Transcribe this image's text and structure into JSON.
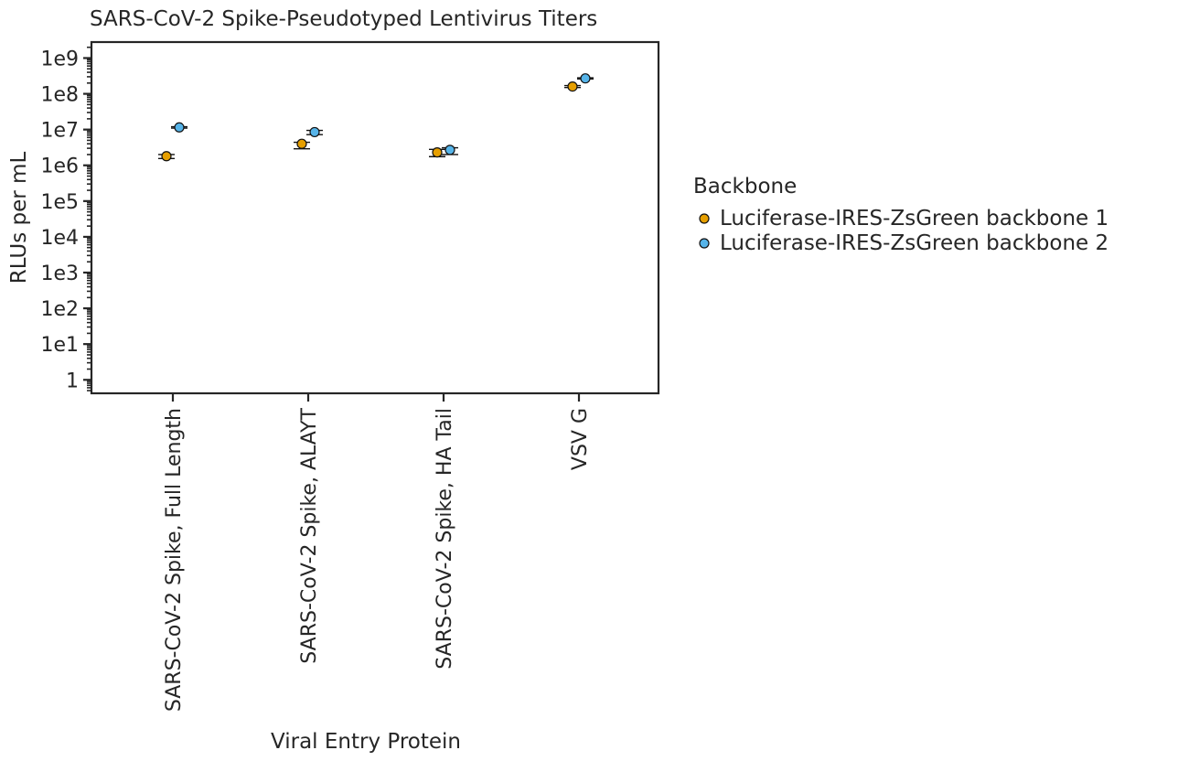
{
  "chart_data": {
    "type": "scatter",
    "title": "SARS-CoV-2 Spike-Pseudotyped Lentivirus Titers",
    "xlabel": "Viral Entry Protein",
    "ylabel": "RLUs per mL",
    "yscale": "log",
    "ylim": [
      0.42,
      2800000000.0
    ],
    "yticks": [
      1,
      10,
      100,
      1000,
      10000,
      100000,
      1000000,
      10000000,
      100000000,
      1000000000
    ],
    "ytick_labels": [
      "1",
      "1e1",
      "1e2",
      "1e3",
      "1e4",
      "1e5",
      "1e6",
      "1e7",
      "1e8",
      "1e9"
    ],
    "categories": [
      "SARS-CoV-2 Spike, Full Length",
      "SARS-CoV-2 Spike, ALAYT",
      "SARS-CoV-2 Spike, HA Tail",
      "VSV G"
    ],
    "grid": false,
    "legend": {
      "title": "Backbone",
      "placement": "right"
    },
    "series": [
      {
        "name": "Luciferase-IRES-ZsGreen backbone 1",
        "color": "#e69f00",
        "values": [
          1800000,
          4000000,
          2300000,
          160000000
        ],
        "err_low": [
          1550000,
          2900000,
          1750000,
          150000000
        ],
        "err_high": [
          2000000,
          4400000,
          2800000,
          170000000
        ]
      },
      {
        "name": "Luciferase-IRES-ZsGreen backbone 2",
        "color": "#56b4e9",
        "values": [
          11500000,
          8500000,
          2700000,
          270000000
        ],
        "err_low": [
          11000000,
          7200000,
          2000000,
          260000000
        ],
        "err_high": [
          12000000,
          9500000,
          3100000,
          280000000
        ]
      }
    ]
  }
}
